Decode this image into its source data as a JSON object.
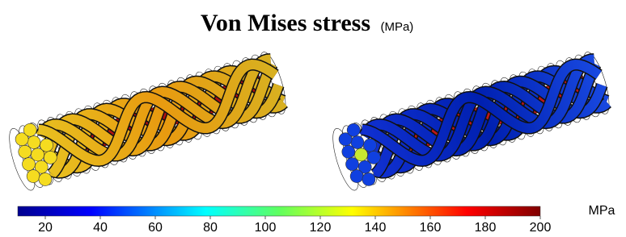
{
  "header": {
    "title": "Von Mises stress",
    "unit": "(MPa)"
  },
  "colorbar": {
    "label": "MPa",
    "lim": [
      10,
      200
    ],
    "ticks": [
      20,
      40,
      60,
      80,
      100,
      120,
      140,
      160,
      180,
      200
    ]
  }
}
